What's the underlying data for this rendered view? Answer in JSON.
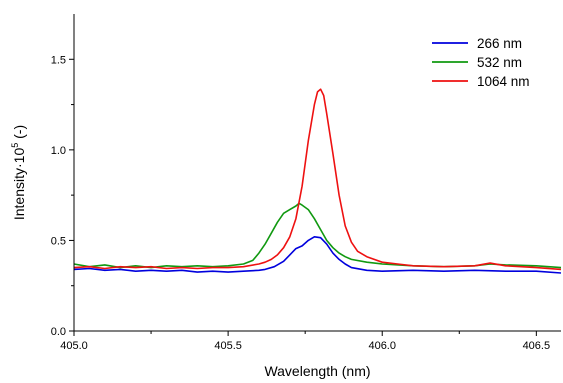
{
  "chart_data": {
    "type": "line",
    "xlabel": "Wavelength (nm)",
    "ylabel_prefix": "Intensity·10",
    "ylabel_exponent": "5",
    "ylabel_suffix": " (-)",
    "xlim": [
      405.0,
      406.58
    ],
    "ylim": [
      0.0,
      1.75
    ],
    "xticks": [
      405.0,
      405.5,
      406.0,
      406.5
    ],
    "xtick_labels": [
      "405.0",
      "405.5",
      "406.0",
      "406.5"
    ],
    "yticks": [
      0.0,
      0.5,
      1.0,
      1.5
    ],
    "ytick_labels": [
      "0.0",
      "0.5",
      "1.0",
      "1.5"
    ],
    "legend_position": "top-right",
    "grid": false,
    "series": [
      {
        "name": "266 nm",
        "color": "#0000dd",
        "points": [
          [
            405.0,
            0.34
          ],
          [
            405.05,
            0.345
          ],
          [
            405.1,
            0.335
          ],
          [
            405.15,
            0.34
          ],
          [
            405.2,
            0.33
          ],
          [
            405.25,
            0.335
          ],
          [
            405.3,
            0.33
          ],
          [
            405.35,
            0.335
          ],
          [
            405.4,
            0.325
          ],
          [
            405.45,
            0.33
          ],
          [
            405.5,
            0.325
          ],
          [
            405.55,
            0.33
          ],
          [
            405.6,
            0.335
          ],
          [
            405.62,
            0.34
          ],
          [
            405.65,
            0.355
          ],
          [
            405.68,
            0.385
          ],
          [
            405.7,
            0.42
          ],
          [
            405.72,
            0.455
          ],
          [
            405.74,
            0.47
          ],
          [
            405.76,
            0.5
          ],
          [
            405.78,
            0.52
          ],
          [
            405.8,
            0.515
          ],
          [
            405.82,
            0.48
          ],
          [
            405.84,
            0.43
          ],
          [
            405.86,
            0.395
          ],
          [
            405.88,
            0.37
          ],
          [
            405.9,
            0.35
          ],
          [
            405.95,
            0.335
          ],
          [
            406.0,
            0.33
          ],
          [
            406.1,
            0.335
          ],
          [
            406.2,
            0.33
          ],
          [
            406.3,
            0.335
          ],
          [
            406.4,
            0.33
          ],
          [
            406.5,
            0.33
          ],
          [
            406.58,
            0.32
          ]
        ]
      },
      {
        "name": "532 nm",
        "color": "#119911",
        "points": [
          [
            405.0,
            0.37
          ],
          [
            405.05,
            0.355
          ],
          [
            405.1,
            0.365
          ],
          [
            405.15,
            0.35
          ],
          [
            405.2,
            0.36
          ],
          [
            405.25,
            0.35
          ],
          [
            405.3,
            0.36
          ],
          [
            405.35,
            0.355
          ],
          [
            405.4,
            0.36
          ],
          [
            405.45,
            0.355
          ],
          [
            405.5,
            0.36
          ],
          [
            405.55,
            0.37
          ],
          [
            405.58,
            0.39
          ],
          [
            405.6,
            0.43
          ],
          [
            405.62,
            0.48
          ],
          [
            405.64,
            0.54
          ],
          [
            405.66,
            0.6
          ],
          [
            405.68,
            0.65
          ],
          [
            405.7,
            0.67
          ],
          [
            405.72,
            0.69
          ],
          [
            405.73,
            0.705
          ],
          [
            405.74,
            0.695
          ],
          [
            405.76,
            0.67
          ],
          [
            405.78,
            0.62
          ],
          [
            405.8,
            0.56
          ],
          [
            405.82,
            0.5
          ],
          [
            405.84,
            0.46
          ],
          [
            405.86,
            0.43
          ],
          [
            405.88,
            0.41
          ],
          [
            405.9,
            0.395
          ],
          [
            405.95,
            0.38
          ],
          [
            406.0,
            0.37
          ],
          [
            406.1,
            0.36
          ],
          [
            406.2,
            0.355
          ],
          [
            406.3,
            0.36
          ],
          [
            406.35,
            0.37
          ],
          [
            406.4,
            0.365
          ],
          [
            406.5,
            0.36
          ],
          [
            406.58,
            0.35
          ]
        ]
      },
      {
        "name": "1064 nm",
        "color": "#ee1111",
        "points": [
          [
            405.0,
            0.35
          ],
          [
            405.05,
            0.355
          ],
          [
            405.1,
            0.345
          ],
          [
            405.15,
            0.355
          ],
          [
            405.2,
            0.35
          ],
          [
            405.25,
            0.355
          ],
          [
            405.3,
            0.345
          ],
          [
            405.35,
            0.35
          ],
          [
            405.4,
            0.345
          ],
          [
            405.45,
            0.35
          ],
          [
            405.5,
            0.35
          ],
          [
            405.55,
            0.355
          ],
          [
            405.6,
            0.37
          ],
          [
            405.62,
            0.38
          ],
          [
            405.64,
            0.395
          ],
          [
            405.66,
            0.42
          ],
          [
            405.68,
            0.46
          ],
          [
            405.7,
            0.52
          ],
          [
            405.72,
            0.62
          ],
          [
            405.74,
            0.8
          ],
          [
            405.76,
            1.05
          ],
          [
            405.78,
            1.25
          ],
          [
            405.79,
            1.32
          ],
          [
            405.8,
            1.335
          ],
          [
            405.81,
            1.3
          ],
          [
            405.82,
            1.2
          ],
          [
            405.84,
            0.98
          ],
          [
            405.86,
            0.75
          ],
          [
            405.88,
            0.58
          ],
          [
            405.9,
            0.49
          ],
          [
            405.92,
            0.44
          ],
          [
            405.95,
            0.41
          ],
          [
            406.0,
            0.38
          ],
          [
            406.05,
            0.37
          ],
          [
            406.1,
            0.36
          ],
          [
            406.2,
            0.355
          ],
          [
            406.3,
            0.36
          ],
          [
            406.35,
            0.375
          ],
          [
            406.4,
            0.36
          ],
          [
            406.5,
            0.35
          ],
          [
            406.58,
            0.34
          ]
        ]
      }
    ]
  }
}
